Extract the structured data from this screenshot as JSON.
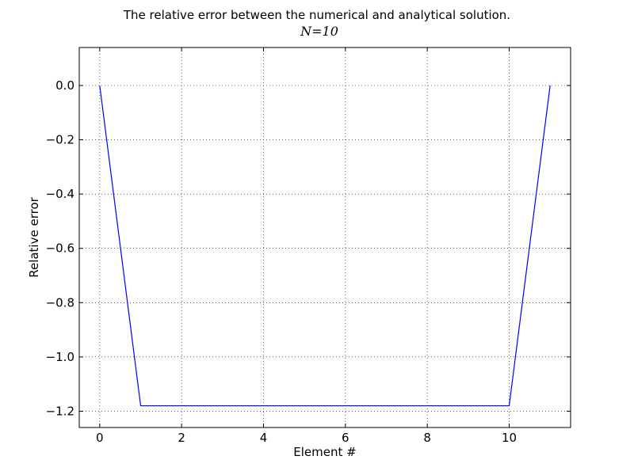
{
  "chart_data": {
    "type": "line",
    "title": "The relative error between the numerical and analytical solution.",
    "subtitle": "N=10",
    "xlabel": "Element #",
    "ylabel": "Relative error",
    "xlim": [
      -0.5,
      11.5
    ],
    "ylim": [
      -1.26,
      0.14
    ],
    "xticks": [
      0,
      2,
      4,
      6,
      8,
      10
    ],
    "xtick_labels": [
      "0",
      "2",
      "4",
      "6",
      "8",
      "10"
    ],
    "yticks": [
      0.0,
      -0.2,
      -0.4,
      -0.6,
      -0.8,
      -1.0,
      -1.2
    ],
    "ytick_labels": [
      "0.0",
      "−0.2",
      "−0.4",
      "−0.6",
      "−0.8",
      "−1.0",
      "−1.2"
    ],
    "grid": true,
    "series": [
      {
        "color": "#0000ff",
        "x": [
          0,
          1,
          2,
          3,
          4,
          5,
          6,
          7,
          8,
          9,
          10,
          11
        ],
        "y": [
          0.0,
          -1.18,
          -1.18,
          -1.18,
          -1.18,
          -1.18,
          -1.18,
          -1.18,
          -1.18,
          -1.18,
          -1.18,
          0.0
        ]
      }
    ]
  }
}
